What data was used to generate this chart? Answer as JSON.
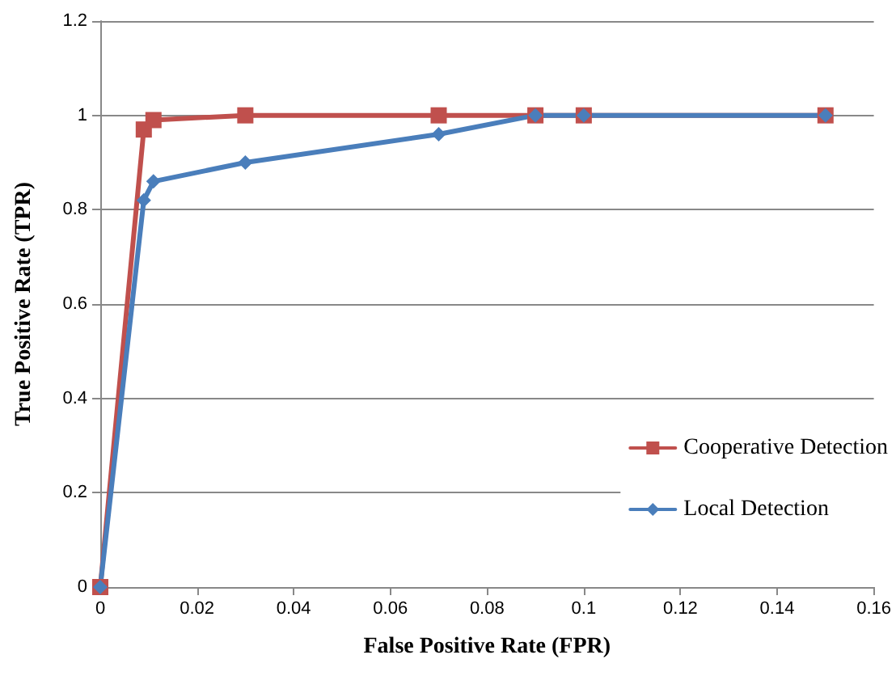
{
  "chart_data": {
    "type": "line",
    "xlabel": "False Positive Rate (FPR)",
    "ylabel": "True Positive Rate (TPR)",
    "xlim": [
      0,
      0.16
    ],
    "xticks": [
      0,
      0.02,
      0.04,
      0.06,
      0.08,
      0.1,
      0.12,
      0.14,
      0.16
    ],
    "ylim": [
      0,
      1.2
    ],
    "yticks": [
      0,
      0.2,
      0.4,
      0.6,
      0.8,
      1,
      1.2
    ],
    "grid": "y",
    "legend": "right",
    "series": [
      {
        "name": "Cooperative Detection",
        "color": "#c0504d",
        "marker": "square",
        "x": [
          0,
          0.009,
          0.011,
          0.03,
          0.07,
          0.09,
          0.1,
          0.15
        ],
        "values": [
          0,
          0.97,
          0.99,
          1,
          1,
          1,
          1,
          1
        ]
      },
      {
        "name": "Local Detection",
        "color": "#4a7ebb",
        "marker": "diamond",
        "x": [
          0,
          0.009,
          0.011,
          0.03,
          0.07,
          0.09,
          0.1,
          0.15
        ],
        "values": [
          0,
          0.82,
          0.86,
          0.9,
          0.96,
          1,
          1,
          1
        ]
      }
    ]
  }
}
